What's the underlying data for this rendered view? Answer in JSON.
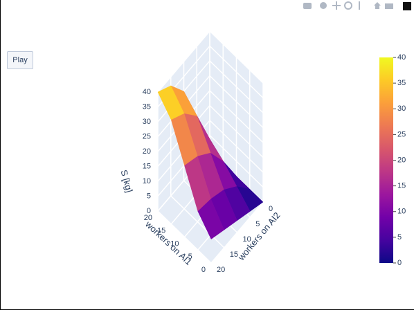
{
  "controls": {
    "play": "Play"
  },
  "chart_data": {
    "type": "surface",
    "x_label": "workers on AI1",
    "y_label": "workers on AI2",
    "z_label": "S [kg]",
    "x": [
      0,
      5,
      10,
      15,
      20
    ],
    "y": [
      0,
      5,
      10,
      15,
      20
    ],
    "z": [
      [
        0,
        2,
        4,
        6,
        8
      ],
      [
        0,
        6,
        10,
        12,
        13
      ],
      [
        0,
        10,
        18,
        22,
        24
      ],
      [
        0,
        13,
        26,
        32,
        35
      ],
      [
        0,
        15,
        30,
        37,
        40
      ]
    ],
    "xlim": [
      0,
      20
    ],
    "ylim": [
      0,
      20
    ],
    "zlim": [
      0,
      40
    ],
    "xticks": [
      0,
      5,
      10,
      15,
      20
    ],
    "yticks": [
      0,
      5,
      10,
      15,
      20
    ],
    "zticks": [
      0,
      5,
      10,
      15,
      20,
      25,
      30,
      35,
      40
    ],
    "clim": [
      0,
      40
    ],
    "cticks": [
      0,
      5,
      10,
      15,
      20,
      25,
      30,
      35,
      40
    ],
    "colorscale": [
      "#0d0887",
      "#46039f",
      "#7201a8",
      "#9c179e",
      "#bd3786",
      "#d8576b",
      "#ed7953",
      "#fb9f3a",
      "#fdca26",
      "#f0f921"
    ],
    "grid": true
  }
}
